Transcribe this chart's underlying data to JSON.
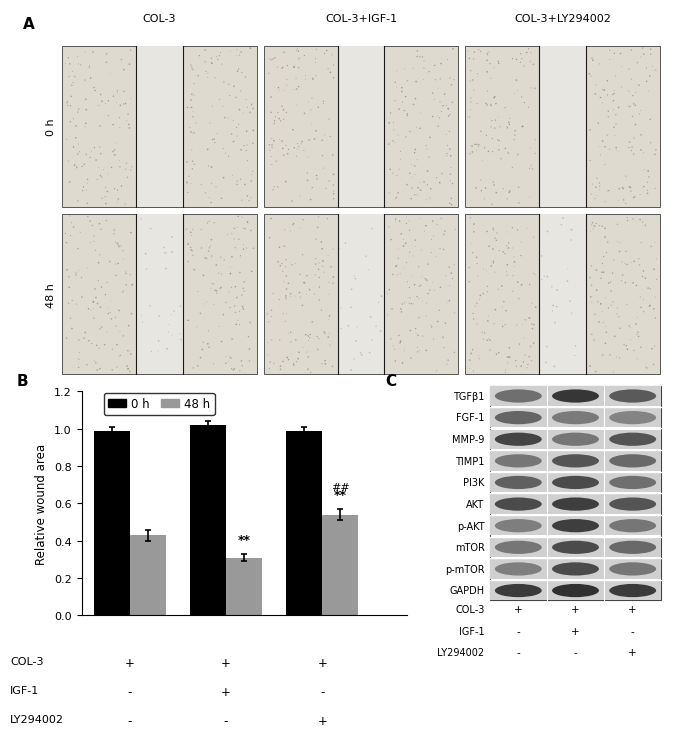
{
  "panel_A_title": "A",
  "panel_B_title": "B",
  "panel_C_title": "C",
  "col_labels": [
    "COL-3",
    "COL-3+IGF-1",
    "COL-3+LY294002"
  ],
  "row_labels_0h": "0 h",
  "row_labels_48h": "48 h",
  "bar_groups": [
    {
      "label": "COL-3",
      "black": 0.99,
      "black_err": 0.02,
      "gray": 0.43,
      "gray_err": 0.03
    },
    {
      "label": "COL-3+IGF-1",
      "black": 1.02,
      "black_err": 0.02,
      "gray": 0.31,
      "gray_err": 0.02
    },
    {
      "label": "COL-3+LY294002",
      "black": 0.99,
      "black_err": 0.02,
      "gray": 0.54,
      "gray_err": 0.03
    }
  ],
  "bar_color_0h": "#000000",
  "bar_color_48h": "#999999",
  "ylabel": "Relative wound area",
  "ylim": [
    0,
    1.2
  ],
  "yticks": [
    0.0,
    0.2,
    0.4,
    0.6,
    0.8,
    1.0,
    1.2
  ],
  "legend_0h": "0 h",
  "legend_48h": "48 h",
  "wb_proteins": [
    "TGFβ1",
    "FGF-1",
    "MMP-9",
    "TIMP1",
    "PI3K",
    "AKT",
    "p-AKT",
    "mTOR",
    "p-mTOR",
    "GAPDH"
  ],
  "scratch_bg_light": "#dedad2",
  "scratch_bg_dark": "#c8c4bc",
  "scratch_wound_color": "#e8e6e2",
  "scratch_line_color": "#2a2a2a",
  "annotations_group2": "**",
  "annotations_group3_1": "##",
  "annotations_group3_2": "**",
  "wb_band_intensities": {
    "TGFβ1": [
      0.55,
      0.82,
      0.65
    ],
    "FGF-1": [
      0.6,
      0.5,
      0.45
    ],
    "MMP-9": [
      0.75,
      0.52,
      0.68
    ],
    "TIMP1": [
      0.52,
      0.68,
      0.58
    ],
    "PI3K": [
      0.62,
      0.72,
      0.55
    ],
    "AKT": [
      0.72,
      0.78,
      0.68
    ],
    "p-AKT": [
      0.48,
      0.78,
      0.52
    ],
    "mTOR": [
      0.52,
      0.72,
      0.58
    ],
    "p-mTOR": [
      0.48,
      0.72,
      0.52
    ],
    "GAPDH": [
      0.8,
      0.85,
      0.8
    ]
  }
}
